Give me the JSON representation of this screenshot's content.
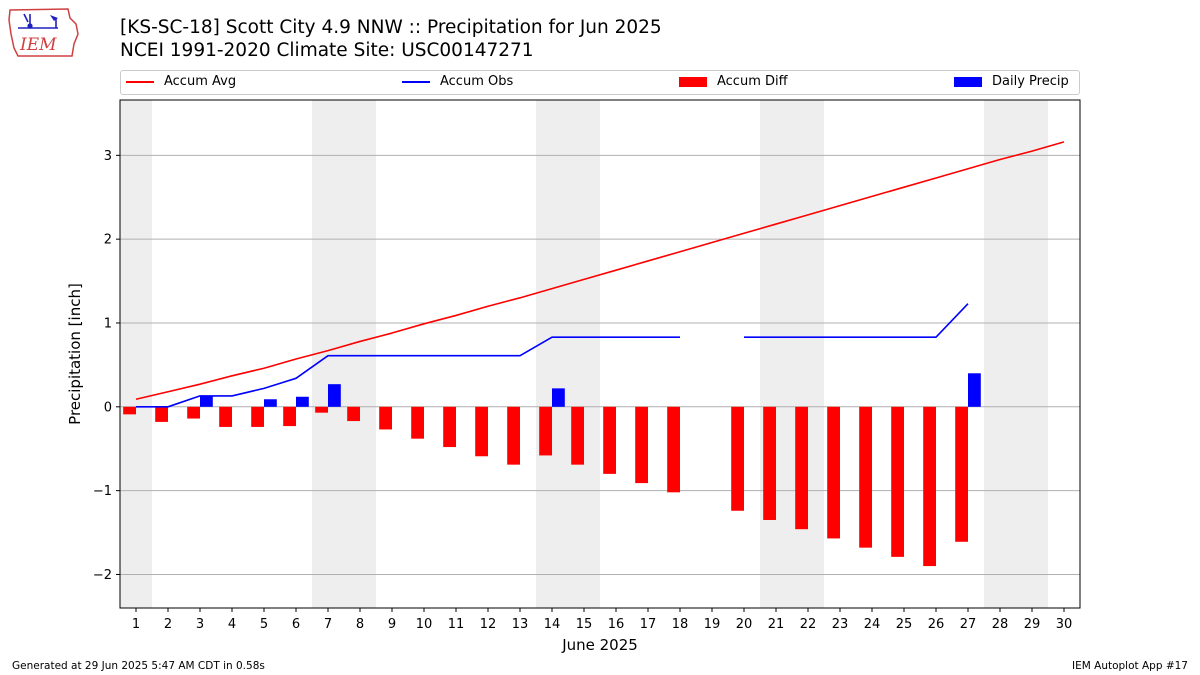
{
  "header": {
    "logo_text": "IEM",
    "title_line1": "[KS-SC-18] Scott City 4.9 NNW :: Precipitation for Jun 2025",
    "title_line2": "NCEI 1991-2020 Climate Site: USC00147271"
  },
  "legend": {
    "items": [
      {
        "label": "Accum Avg",
        "kind": "line",
        "color": "#ff0000"
      },
      {
        "label": "Accum Obs",
        "kind": "line",
        "color": "#0000ff"
      },
      {
        "label": "Accum Diff",
        "kind": "patch",
        "color": "#ff0000"
      },
      {
        "label": "Daily Precip",
        "kind": "patch",
        "color": "#0000ff"
      }
    ]
  },
  "footer": {
    "left": "Generated at 29 Jun 2025 5:47 AM CDT in 0.58s",
    "right": "IEM Autoplot App #17"
  },
  "colors": {
    "avg": "#ff0000",
    "obs": "#0000ff",
    "diff": "#ff0000",
    "daily": "#0000ff",
    "weekend_shade": "#eeeeee",
    "grid": "#b0b0b0"
  },
  "chart_data": {
    "type": "bar",
    "xlabel": "June 2025",
    "ylabel": "Precipitation [inch]",
    "xlim": [
      0.5,
      30.5
    ],
    "ylim": [
      -2.4,
      3.66
    ],
    "yticks": [
      -2,
      -1,
      0,
      1,
      2,
      3
    ],
    "yticklabels": [
      "−2",
      "−1",
      "0",
      "1",
      "2",
      "3"
    ],
    "x": [
      1,
      2,
      3,
      4,
      5,
      6,
      7,
      8,
      9,
      10,
      11,
      12,
      13,
      14,
      15,
      16,
      17,
      18,
      19,
      20,
      21,
      22,
      23,
      24,
      25,
      26,
      27,
      28,
      29,
      30
    ],
    "grid": "horizontal",
    "weekend_shading": [
      [
        0.5,
        1.5
      ],
      [
        6.5,
        8.5
      ],
      [
        13.5,
        15.5
      ],
      [
        20.5,
        22.5
      ],
      [
        27.5,
        29.5
      ]
    ],
    "series": [
      {
        "name": "Accum Avg",
        "kind": "line",
        "values": [
          0.09,
          0.18,
          0.27,
          0.37,
          0.46,
          0.57,
          0.67,
          0.78,
          0.88,
          0.99,
          1.09,
          1.2,
          1.3,
          1.41,
          1.52,
          1.63,
          1.74,
          1.85,
          1.96,
          2.07,
          2.18,
          2.29,
          2.4,
          2.51,
          2.62,
          2.73,
          2.84,
          2.95,
          3.05,
          3.16
        ]
      },
      {
        "name": "Accum Obs",
        "kind": "line",
        "values": [
          0.0,
          0.0,
          0.13,
          0.13,
          0.22,
          0.34,
          0.61,
          0.61,
          0.61,
          0.61,
          0.61,
          0.61,
          0.61,
          0.83,
          0.83,
          0.83,
          0.83,
          0.83,
          null,
          0.83,
          0.83,
          0.83,
          0.83,
          0.83,
          0.83,
          0.83,
          1.23,
          null,
          null,
          null
        ]
      },
      {
        "name": "Accum Diff",
        "kind": "bar",
        "values": [
          -0.09,
          -0.18,
          -0.14,
          -0.24,
          -0.24,
          -0.23,
          -0.07,
          -0.17,
          -0.27,
          -0.38,
          -0.48,
          -0.59,
          -0.69,
          -0.58,
          -0.69,
          -0.8,
          -0.91,
          -1.02,
          null,
          -1.24,
          -1.35,
          -1.46,
          -1.57,
          -1.68,
          -1.79,
          -1.9,
          -1.61,
          null,
          null,
          null
        ]
      },
      {
        "name": "Daily Precip",
        "kind": "bar",
        "values": [
          0.0,
          0.0,
          0.13,
          0.0,
          0.09,
          0.12,
          0.27,
          0.0,
          0.0,
          0.0,
          0.0,
          0.0,
          0.0,
          0.22,
          0.0,
          0.0,
          0.0,
          0.0,
          null,
          0.0,
          0.0,
          0.0,
          0.0,
          0.0,
          0.0,
          0.0,
          0.4,
          null,
          null,
          null
        ]
      }
    ]
  }
}
